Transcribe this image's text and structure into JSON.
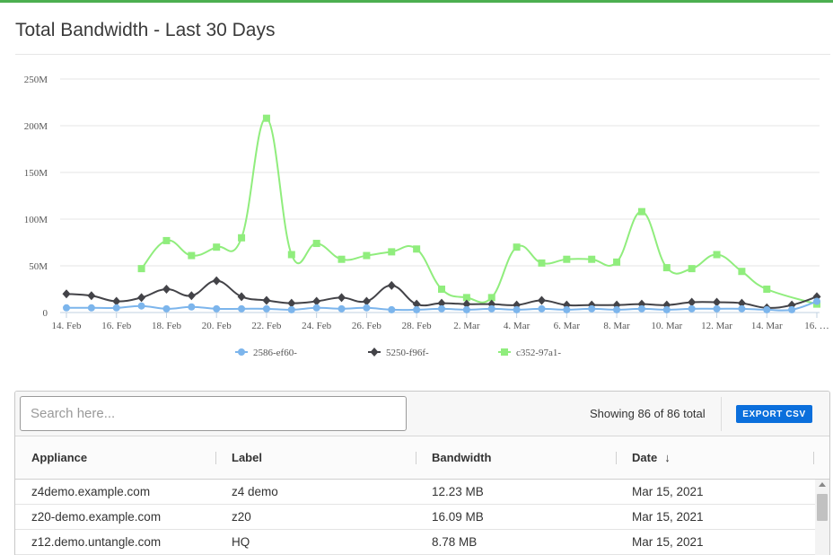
{
  "page": {
    "title": "Total Bandwidth - Last 30 Days"
  },
  "colors": {
    "accent_bar": "#4caf50",
    "export_button": "#0b6fdc"
  },
  "chart_data": {
    "type": "line",
    "title": "",
    "xlabel": "",
    "ylabel": "",
    "ylim": [
      0,
      250
    ],
    "y_unit": "M",
    "y_ticks": [
      "0",
      "50M",
      "100M",
      "150M",
      "200M",
      "250M"
    ],
    "x_tick_labels": [
      "14. Feb",
      "16. Feb",
      "18. Feb",
      "20. Feb",
      "22. Feb",
      "24. Feb",
      "26. Feb",
      "28. Feb",
      "2. Mar",
      "4. Mar",
      "6. Mar",
      "8. Mar",
      "10. Mar",
      "12. Mar",
      "14. Mar",
      "16. …"
    ],
    "x": [
      "14. Feb",
      "15. Feb",
      "16. Feb",
      "17. Feb",
      "18. Feb",
      "19. Feb",
      "20. Feb",
      "21. Feb",
      "22. Feb",
      "23. Feb",
      "24. Feb",
      "25. Feb",
      "26. Feb",
      "27. Feb",
      "28. Feb",
      "1. Mar",
      "2. Mar",
      "3. Mar",
      "4. Mar",
      "5. Mar",
      "6. Mar",
      "7. Mar",
      "8. Mar",
      "9. Mar",
      "10. Mar",
      "11. Mar",
      "12. Mar",
      "13. Mar",
      "14. Mar",
      "15. Mar",
      "16. Mar"
    ],
    "grid": true,
    "legend": "bottom",
    "series": [
      {
        "name": "2586-ef60-",
        "color": "#7cb5ec",
        "marker": "circle",
        "values": [
          5,
          5,
          5,
          7,
          4,
          6,
          4,
          4,
          4,
          3,
          5,
          4,
          5,
          3,
          3,
          4,
          3,
          4,
          3,
          4,
          3,
          4,
          3,
          4,
          3,
          4,
          4,
          4,
          3,
          3,
          12
        ]
      },
      {
        "name": "5250-f96f-",
        "color": "#434348",
        "marker": "diamond",
        "values": [
          20,
          18,
          12,
          16,
          25,
          18,
          34,
          17,
          13,
          10,
          12,
          16,
          12,
          29,
          9,
          10,
          9,
          9,
          8,
          13,
          8,
          8,
          8,
          9,
          8,
          11,
          11,
          10,
          5,
          8,
          17
        ]
      },
      {
        "name": "c352-97a1-",
        "color": "#90ed7d",
        "marker": "square",
        "values": [
          null,
          null,
          null,
          47,
          77,
          61,
          70,
          80,
          208,
          62,
          74,
          57,
          61,
          65,
          68,
          25,
          16,
          16,
          70,
          53,
          57,
          57,
          54,
          108,
          48,
          47,
          62,
          44,
          25,
          null,
          9
        ]
      }
    ]
  },
  "table": {
    "search_placeholder": "Search here...",
    "showing_text": "Showing 86 of 86 total",
    "export_label": "EXPORT CSV",
    "columns": [
      "Appliance",
      "Label",
      "Bandwidth",
      "Date"
    ],
    "sort_icon": "↓",
    "rows": [
      [
        "z4demo.example.com",
        "z4 demo",
        "12.23 MB",
        "Mar 15, 2021"
      ],
      [
        "z20-demo.example.com",
        "z20",
        "16.09 MB",
        "Mar 15, 2021"
      ],
      [
        "z12.demo.untangle.com",
        "HQ",
        "8.78 MB",
        "Mar 15, 2021"
      ]
    ]
  }
}
